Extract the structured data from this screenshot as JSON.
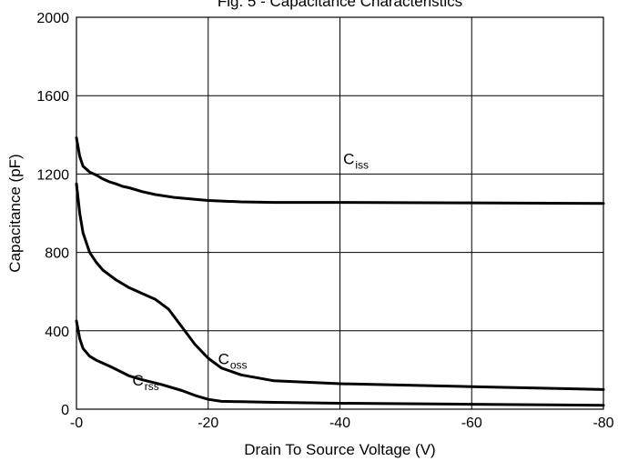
{
  "chart_data": {
    "type": "line",
    "title": "Fig. 5 - Capacitance Characteristics",
    "xlabel": "Drain To Source Voltage (V)",
    "ylabel": "Capacitance (pF)",
    "xlim": [
      0,
      -80
    ],
    "ylim": [
      0,
      2000
    ],
    "xticks": [
      0,
      -20,
      -40,
      -60,
      -80
    ],
    "xtick_labels": [
      "-0",
      "-20",
      "-40",
      "-60",
      "-80"
    ],
    "yticks": [
      0,
      400,
      800,
      1200,
      1600,
      2000
    ],
    "ytick_labels": [
      "0",
      "400",
      "800",
      "1200",
      "1600",
      "2000"
    ],
    "grid": true,
    "series": [
      {
        "name": "Ciss",
        "label_main": "C",
        "label_sub": "iss",
        "points": [
          [
            0,
            1385
          ],
          [
            -0.5,
            1290
          ],
          [
            -1,
            1240
          ],
          [
            -2,
            1210
          ],
          [
            -3,
            1195
          ],
          [
            -4,
            1175
          ],
          [
            -5,
            1160
          ],
          [
            -6,
            1150
          ],
          [
            -7,
            1137
          ],
          [
            -8,
            1130
          ],
          [
            -10,
            1110
          ],
          [
            -12,
            1095
          ],
          [
            -15,
            1080
          ],
          [
            -20,
            1065
          ],
          [
            -25,
            1058
          ],
          [
            -30,
            1055
          ],
          [
            -40,
            1055
          ],
          [
            -60,
            1053
          ],
          [
            -80,
            1050
          ]
        ]
      },
      {
        "name": "Coss",
        "label_main": "C",
        "label_sub": "oss",
        "points": [
          [
            0,
            1150
          ],
          [
            -0.5,
            1000
          ],
          [
            -1,
            900
          ],
          [
            -2,
            800
          ],
          [
            -3,
            750
          ],
          [
            -4,
            710
          ],
          [
            -6,
            660
          ],
          [
            -8,
            620
          ],
          [
            -10,
            590
          ],
          [
            -12,
            560
          ],
          [
            -14,
            510
          ],
          [
            -16,
            420
          ],
          [
            -18,
            330
          ],
          [
            -20,
            260
          ],
          [
            -22,
            210
          ],
          [
            -25,
            175
          ],
          [
            -30,
            145
          ],
          [
            -40,
            130
          ],
          [
            -60,
            115
          ],
          [
            -80,
            100
          ]
        ]
      },
      {
        "name": "Crss",
        "label_main": "C",
        "label_sub": "rss",
        "points": [
          [
            0,
            450
          ],
          [
            -0.5,
            360
          ],
          [
            -1,
            310
          ],
          [
            -2,
            270
          ],
          [
            -3,
            250
          ],
          [
            -5,
            220
          ],
          [
            -8,
            170
          ],
          [
            -10,
            150
          ],
          [
            -13,
            125
          ],
          [
            -16,
            95
          ],
          [
            -18,
            70
          ],
          [
            -20,
            50
          ],
          [
            -22,
            40
          ],
          [
            -25,
            38
          ],
          [
            -30,
            35
          ],
          [
            -40,
            30
          ],
          [
            -60,
            25
          ],
          [
            -80,
            20
          ]
        ]
      }
    ],
    "annotations": [
      {
        "series": "Ciss",
        "x": -40.5,
        "y": 1250
      },
      {
        "series": "Coss",
        "x": -21.5,
        "y": 230
      },
      {
        "series": "Crss",
        "x": -8.5,
        "y": 120
      }
    ]
  }
}
